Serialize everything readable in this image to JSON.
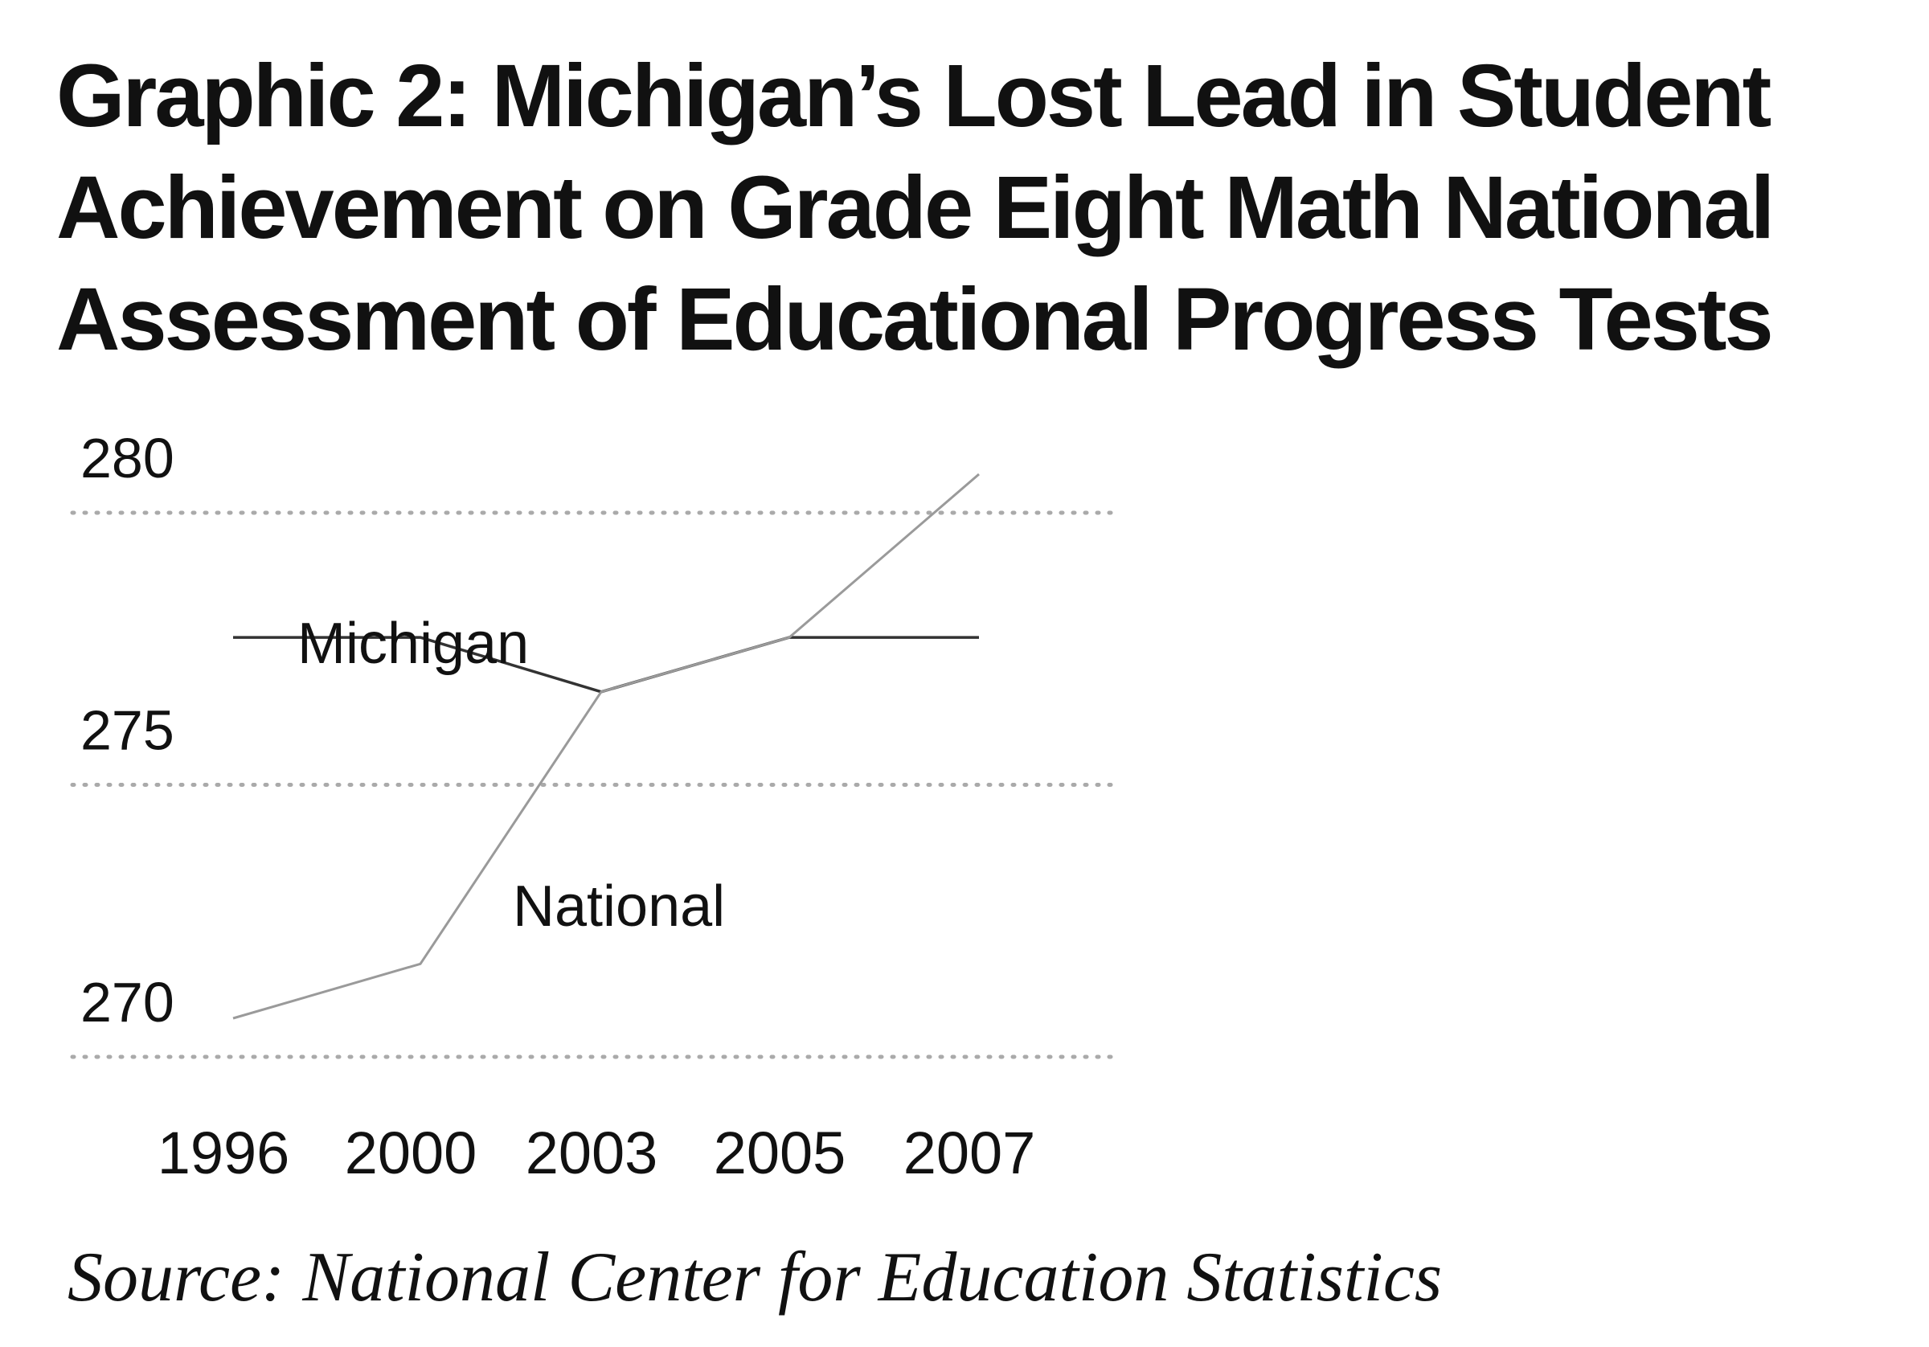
{
  "chart_data": {
    "type": "line",
    "title": "Graphic 2: Michigan’s Lost Lead in Student Achievement on Grade Eight Math National Assessment of Educational Progress Tests",
    "categories": [
      "1996",
      "2000",
      "2003",
      "2005",
      "2007"
    ],
    "series": [
      {
        "name": "Michigan",
        "values": [
          277,
          277,
          276,
          277,
          277
        ],
        "color": "#333333"
      },
      {
        "name": "National",
        "values": [
          270,
          271,
          276,
          277,
          280
        ],
        "color": "#9a9a9a"
      }
    ],
    "y_ticks": [
      270,
      275,
      280
    ],
    "ylim": [
      270,
      280
    ],
    "grid": "horizontal dotted",
    "xlabel": "",
    "ylabel": "",
    "source": "Source: National Center for Education Statistics"
  }
}
